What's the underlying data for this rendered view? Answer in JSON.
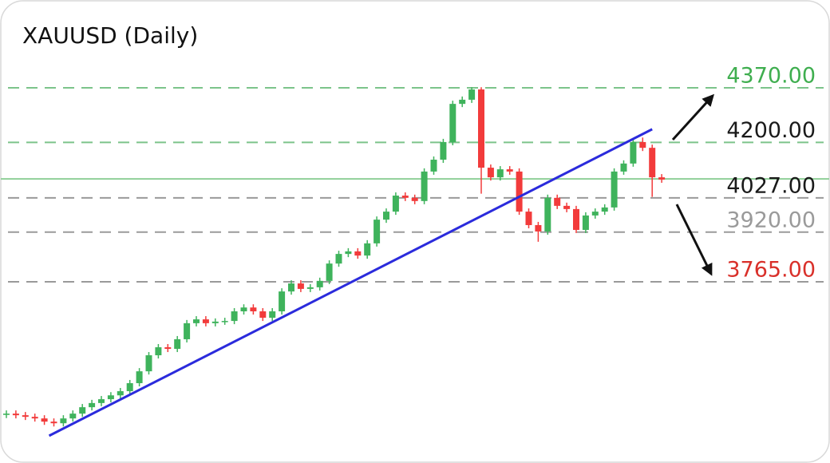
{
  "chart_data": {
    "type": "candlestick",
    "title": "XAUUSD (Daily)",
    "ylim": [
      3200,
      4644
    ],
    "up_color": "#3fb35c",
    "down_color": "#f23b3b",
    "series": [
      {
        "open": [
          3350,
          3354,
          3349,
          3344,
          3339,
          3329,
          3324,
          3339,
          3354,
          3374,
          3387,
          3399,
          3411,
          3424,
          3449,
          3486,
          3536,
          3561,
          3556,
          3586,
          3636,
          3648,
          3636,
          3641,
          3643,
          3673,
          3685,
          3673,
          3653,
          3673,
          3735,
          3760,
          3743,
          3748,
          3768,
          3822,
          3852,
          3860,
          3847,
          3885,
          3959,
          3984,
          4034,
          4027,
          4017,
          4109,
          4146,
          4201,
          4320,
          4333,
          4365,
          4121,
          4091,
          4116,
          4109,
          3984,
          3942,
          3922,
          4027,
          4002,
          3992,
          3927,
          3972,
          3984,
          3997,
          4109,
          4134,
          4201,
          4183,
          4091
        ],
        "high": [
          3364,
          3364,
          3359,
          3354,
          3349,
          3339,
          3349,
          3364,
          3384,
          3397,
          3409,
          3421,
          3434,
          3459,
          3496,
          3546,
          3571,
          3571,
          3596,
          3646,
          3658,
          3658,
          3651,
          3653,
          3683,
          3695,
          3695,
          3683,
          3683,
          3745,
          3770,
          3770,
          3758,
          3778,
          3832,
          3862,
          3870,
          3870,
          3895,
          3969,
          3994,
          4044,
          4044,
          4037,
          4119,
          4156,
          4211,
          4330,
          4343,
          4372,
          4372,
          4131,
          4126,
          4126,
          4119,
          3994,
          3952,
          4037,
          4037,
          4012,
          4002,
          3982,
          3994,
          4007,
          4119,
          4144,
          4211,
          4215,
          4193,
          4101
        ],
        "low": [
          3340,
          3339,
          3334,
          3329,
          3319,
          3314,
          3314,
          3329,
          3344,
          3364,
          3377,
          3389,
          3401,
          3414,
          3439,
          3476,
          3526,
          3546,
          3546,
          3576,
          3626,
          3626,
          3626,
          3631,
          3633,
          3663,
          3663,
          3643,
          3643,
          3663,
          3725,
          3733,
          3733,
          3738,
          3758,
          3812,
          3842,
          3837,
          3837,
          3875,
          3949,
          3974,
          4017,
          4007,
          4007,
          4099,
          4136,
          4191,
          4310,
          4323,
          4040,
          4081,
          4081,
          4099,
          3974,
          3932,
          3890,
          3912,
          3992,
          3982,
          3917,
          3917,
          3962,
          3974,
          3987,
          4099,
          4124,
          4173,
          4030,
          4074
        ],
        "close": [
          3354,
          3349,
          3344,
          3339,
          3329,
          3324,
          3339,
          3354,
          3374,
          3387,
          3399,
          3411,
          3424,
          3449,
          3486,
          3536,
          3561,
          3556,
          3586,
          3636,
          3648,
          3636,
          3641,
          3643,
          3673,
          3685,
          3673,
          3653,
          3673,
          3735,
          3760,
          3743,
          3748,
          3768,
          3822,
          3852,
          3860,
          3847,
          3885,
          3959,
          3984,
          4034,
          4027,
          4017,
          4109,
          4146,
          4201,
          4320,
          4333,
          4365,
          4121,
          4091,
          4116,
          4109,
          3984,
          3942,
          3922,
          4027,
          4002,
          3992,
          3927,
          3972,
          3984,
          3997,
          4109,
          4134,
          4201,
          4183,
          4091,
          4084
        ]
      }
    ],
    "trendline": {
      "x": [
        4.5,
        68
      ],
      "y": [
        3285,
        4241
      ],
      "color": "#2b2bdc"
    },
    "current_price": {
      "value": 4086,
      "color": "#8fcf98"
    },
    "levels": [
      {
        "value": 4370,
        "label": "4370.00",
        "line_color": "#7cc48a",
        "label_color": "#3fae4f"
      },
      {
        "value": 4200,
        "label": "4200.00",
        "line_color": "#7cc48a",
        "label_color": "#1a1a1a"
      },
      {
        "value": 4027,
        "label": "4027.00",
        "line_color": "#9a9a9a",
        "label_color": "#1a1a1a"
      },
      {
        "value": 3920,
        "label": "3920.00",
        "line_color": "#9a9a9a",
        "label_color": "#9a9a9a"
      },
      {
        "value": 3765,
        "label": "3765.00",
        "line_color": "#9a9a9a",
        "label_color": "#d9302a"
      }
    ]
  }
}
